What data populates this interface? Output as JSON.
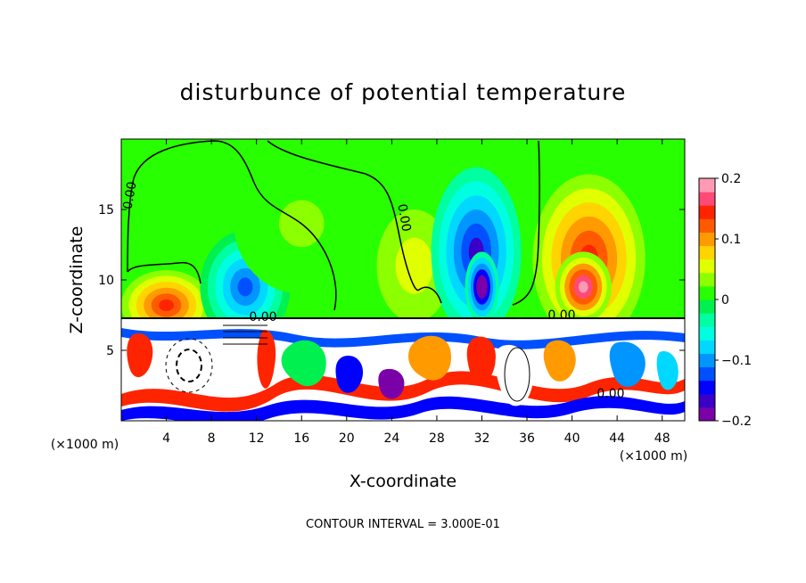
{
  "chart_data": {
    "type": "heatmap",
    "title": "disturbunce of potential temperature",
    "xlabel": "X-coordinate",
    "ylabel": "Z-coordinate",
    "x_unit_label": "(×1000 m)",
    "x_unit_label_right": "(×1000 m)",
    "xlim": [
      0,
      50
    ],
    "ylim": [
      0,
      20
    ],
    "x_ticks": [
      4,
      8,
      12,
      16,
      20,
      24,
      28,
      32,
      36,
      40,
      44,
      48
    ],
    "y_ticks": [
      5,
      10,
      15
    ],
    "colorbar": {
      "range": [
        -0.2,
        0.2
      ],
      "tick_values": [
        0.2,
        0.1,
        0,
        -0.1,
        -0.2
      ],
      "tick_labels": [
        "0.2",
        "0.1",
        "0",
        "−0.1",
        "−0.2"
      ],
      "colors": [
        "#7a00a8",
        "#3a00c8",
        "#0000ff",
        "#0050ff",
        "#0095ff",
        "#00d8ff",
        "#00ffe0",
        "#00ffa0",
        "#00f050",
        "#28ff00",
        "#8cff00",
        "#e0ff00",
        "#ffd400",
        "#ff9a00",
        "#ff5a00",
        "#ff2400",
        "#ff4a78",
        "#ff9ab4"
      ]
    },
    "contour_labels": [
      "0.00",
      "0.00",
      "0.00",
      "0.00",
      "0.00"
    ],
    "contour_interval_text": "CONTOUR INTERVAL = 3.000E-01",
    "upper_features": [
      {
        "x": 4,
        "z": 8.2,
        "value": 0.14,
        "rx": 4,
        "rz": 2.5
      },
      {
        "x": 11,
        "z": 9.5,
        "value": -0.12,
        "rx": 4,
        "rz": 4
      },
      {
        "x": 16,
        "z": 14,
        "value": 0.03,
        "rx": 6,
        "rz": 5
      },
      {
        "x": 26,
        "z": 11,
        "value": 0.06,
        "rx": 5,
        "rz": 6
      },
      {
        "x": 31.5,
        "z": 12,
        "value": -0.16,
        "rx": 4,
        "rz": 6
      },
      {
        "x": 32,
        "z": 9.5,
        "value": -0.22,
        "rx": 1.5,
        "rz": 2.5
      },
      {
        "x": 41.5,
        "z": 11.5,
        "value": 0.15,
        "rx": 5,
        "rz": 6
      },
      {
        "x": 41,
        "z": 9.5,
        "value": 0.19,
        "rx": 2.5,
        "rz": 2.5
      }
    ]
  }
}
